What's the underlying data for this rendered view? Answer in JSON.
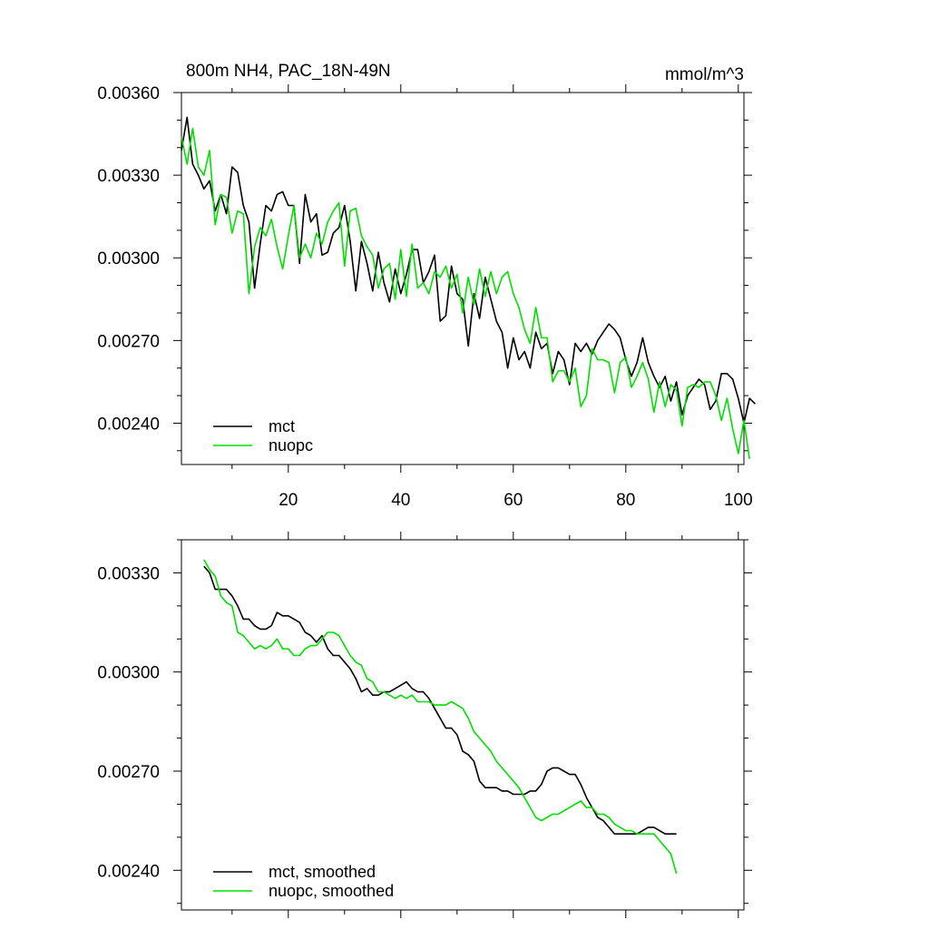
{
  "chart_data": [
    {
      "type": "line",
      "title": "800m NH4, PAC_18N-49N",
      "units": "mmol/m^3",
      "xlim": [
        1,
        101
      ],
      "ylim": [
        0.00225,
        0.0036
      ],
      "x_ticks": [
        20,
        40,
        60,
        80,
        100
      ],
      "y_ticks": [
        0.0024,
        0.0027,
        0.003,
        0.0033,
        0.0036
      ],
      "y_tick_labels": [
        "0.00240",
        "0.00270",
        "0.00300",
        "0.00330",
        "0.00360"
      ],
      "legend_position": "bottom-left",
      "colors": {
        "mct": "#000000",
        "nuopc": "#00e000"
      },
      "x_start": 1,
      "series": [
        {
          "name": "mct",
          "values": [
            0.00339,
            0.00351,
            0.00334,
            0.0033,
            0.00325,
            0.00328,
            0.00317,
            0.00323,
            0.00316,
            0.00333,
            0.00331,
            0.00319,
            0.00313,
            0.00289,
            0.00305,
            0.00319,
            0.00317,
            0.00323,
            0.00324,
            0.00319,
            0.00319,
            0.00298,
            0.00323,
            0.00313,
            0.00316,
            0.00301,
            0.00302,
            0.00309,
            0.00311,
            0.00319,
            0.00306,
            0.00288,
            0.00306,
            0.00298,
            0.00288,
            0.00302,
            0.00291,
            0.00284,
            0.00296,
            0.00287,
            0.00294,
            0.00303,
            0.00303,
            0.00291,
            0.00295,
            0.00301,
            0.00277,
            0.00279,
            0.00297,
            0.00287,
            0.00285,
            0.00268,
            0.00287,
            0.00278,
            0.00293,
            0.00285,
            0.00277,
            0.00273,
            0.0026,
            0.00271,
            0.00263,
            0.00266,
            0.0026,
            0.00273,
            0.00267,
            0.00269,
            0.00258,
            0.00266,
            0.00263,
            0.00254,
            0.00269,
            0.00266,
            0.00269,
            0.00265,
            0.0027,
            0.00273,
            0.00276,
            0.00274,
            0.00271,
            0.00263,
            0.00257,
            0.00262,
            0.00271,
            0.00262,
            0.00257,
            0.00253,
            0.00257,
            0.00248,
            0.00255,
            0.00243,
            0.0025,
            0.00253,
            0.00256,
            0.00254,
            0.00245,
            0.00248,
            0.00258,
            0.00258,
            0.00256,
            0.00249,
            0.0024,
            0.00249,
            0.00247
          ]
        },
        {
          "name": "nuopc",
          "values": [
            0.00344,
            0.00334,
            0.00347,
            0.00333,
            0.0033,
            0.00339,
            0.00312,
            0.00323,
            0.00322,
            0.00309,
            0.00317,
            0.00316,
            0.00287,
            0.00304,
            0.00311,
            0.00308,
            0.00314,
            0.00304,
            0.00296,
            0.00308,
            0.00319,
            0.003,
            0.00305,
            0.003,
            0.00309,
            0.00305,
            0.00313,
            0.00317,
            0.0032,
            0.00297,
            0.00317,
            0.00318,
            0.00308,
            0.00304,
            0.00301,
            0.00289,
            0.00296,
            0.00298,
            0.00285,
            0.00303,
            0.00286,
            0.00305,
            0.00289,
            0.00291,
            0.00287,
            0.00295,
            0.00293,
            0.00297,
            0.00289,
            0.00294,
            0.0028,
            0.00293,
            0.00283,
            0.00296,
            0.00286,
            0.00295,
            0.00287,
            0.00293,
            0.00295,
            0.00287,
            0.00282,
            0.00274,
            0.00269,
            0.00282,
            0.00271,
            0.00271,
            0.00255,
            0.00259,
            0.00259,
            0.00255,
            0.0026,
            0.00246,
            0.0025,
            0.00267,
            0.00263,
            0.00263,
            0.00262,
            0.00251,
            0.00262,
            0.00264,
            0.00253,
            0.00257,
            0.00262,
            0.00256,
            0.00244,
            0.00255,
            0.00246,
            0.00254,
            0.00252,
            0.00239,
            0.00253,
            0.00254,
            0.00253,
            0.00255,
            0.00255,
            0.0025,
            0.00241,
            0.00249,
            0.00238,
            0.00229,
            0.00241,
            0.00227
          ]
        }
      ]
    },
    {
      "type": "line",
      "xlim": [
        1,
        101
      ],
      "ylim": [
        0.00228,
        0.0034
      ],
      "x_ticks": [
        20,
        40,
        60,
        80,
        100
      ],
      "y_ticks": [
        0.0024,
        0.0027,
        0.003,
        0.0033
      ],
      "y_tick_labels": [
        "0.00240",
        "0.00270",
        "0.00300",
        "0.00330"
      ],
      "legend_position": "bottom-left",
      "colors": {
        "mct": "#000000",
        "nuopc": "#00e000"
      },
      "x_start": 5,
      "series": [
        {
          "name": "mct, smoothed",
          "values": [
            0.00332,
            0.0033,
            0.00325,
            0.00325,
            0.00325,
            0.00323,
            0.0032,
            0.00316,
            0.00316,
            0.00314,
            0.00313,
            0.00313,
            0.00314,
            0.00318,
            0.00317,
            0.00317,
            0.00316,
            0.00315,
            0.00312,
            0.00311,
            0.00309,
            0.00311,
            0.00307,
            0.00305,
            0.00305,
            0.00303,
            0.00301,
            0.00298,
            0.00294,
            0.00295,
            0.00293,
            0.00293,
            0.00294,
            0.00294,
            0.00295,
            0.00296,
            0.00297,
            0.00295,
            0.00294,
            0.00294,
            0.00292,
            0.00289,
            0.00286,
            0.00283,
            0.00283,
            0.00281,
            0.00276,
            0.00275,
            0.00273,
            0.00267,
            0.00265,
            0.00265,
            0.00265,
            0.00264,
            0.00264,
            0.00263,
            0.00263,
            0.00263,
            0.00264,
            0.00264,
            0.00266,
            0.0027,
            0.00271,
            0.00271,
            0.0027,
            0.00269,
            0.00269,
            0.00266,
            0.00262,
            0.00259,
            0.00256,
            0.00255,
            0.00253,
            0.00251,
            0.00251,
            0.00251,
            0.00251,
            0.00251,
            0.00252,
            0.00253,
            0.00253,
            0.00252,
            0.00251,
            0.00251,
            0.00251
          ]
        },
        {
          "name": "nuopc, smoothed",
          "values": [
            0.00334,
            0.00331,
            0.00329,
            0.00323,
            0.00321,
            0.0032,
            0.00312,
            0.00311,
            0.00309,
            0.00307,
            0.00308,
            0.00307,
            0.00308,
            0.0031,
            0.00307,
            0.00307,
            0.00305,
            0.00305,
            0.00307,
            0.00308,
            0.00308,
            0.0031,
            0.00312,
            0.00312,
            0.00311,
            0.00308,
            0.00305,
            0.00303,
            0.00302,
            0.00298,
            0.00297,
            0.00294,
            0.00294,
            0.00293,
            0.00292,
            0.00293,
            0.00292,
            0.00293,
            0.00291,
            0.00291,
            0.00291,
            0.0029,
            0.0029,
            0.0029,
            0.00291,
            0.0029,
            0.00289,
            0.00286,
            0.00282,
            0.0028,
            0.00278,
            0.00276,
            0.00273,
            0.00271,
            0.00269,
            0.00267,
            0.00265,
            0.00262,
            0.00259,
            0.00256,
            0.00255,
            0.00256,
            0.00257,
            0.00257,
            0.00258,
            0.00259,
            0.0026,
            0.00261,
            0.00259,
            0.00259,
            0.00257,
            0.00257,
            0.00256,
            0.00254,
            0.00253,
            0.00252,
            0.00252,
            0.00251,
            0.00251,
            0.00251,
            0.00251,
            0.00249,
            0.00247,
            0.00245,
            0.00239
          ]
        }
      ]
    }
  ]
}
